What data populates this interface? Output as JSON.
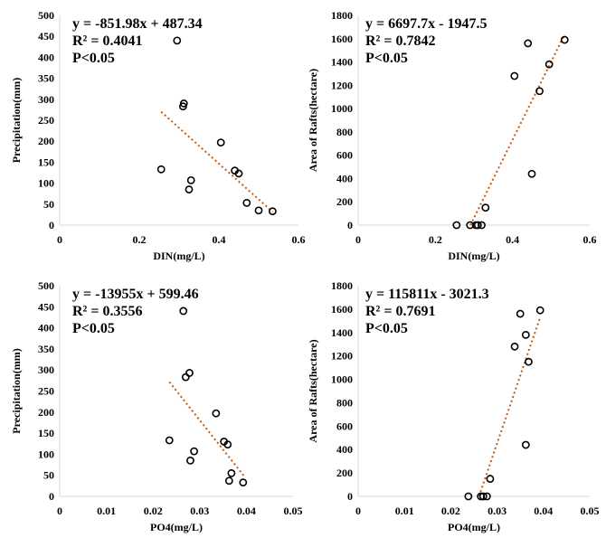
{
  "chart_data": [
    {
      "type": "scatter",
      "xlabel": "DIN(mg/L)",
      "ylabel": "Precipitation(mm)",
      "xlim": [
        0,
        0.6
      ],
      "ylim": [
        0,
        500
      ],
      "xticks": [
        "0",
        "0.2",
        "0.4",
        "0.6"
      ],
      "yticks": [
        "0",
        "50",
        "100",
        "150",
        "200",
        "250",
        "300",
        "350",
        "400",
        "450",
        "500"
      ],
      "x": [
        0.255,
        0.295,
        0.31,
        0.312,
        0.325,
        0.33,
        0.405,
        0.44,
        0.45,
        0.47,
        0.5,
        0.535
      ],
      "y": [
        133,
        440,
        283,
        290,
        85,
        107,
        197,
        130,
        123,
        53,
        35,
        33
      ],
      "trendline": {
        "slope": -851.98,
        "intercept": 487.34,
        "x_range": [
          0.255,
          0.535
        ]
      },
      "annotations": [
        "y = -851.98x + 487.34",
        "R² = 0.4041",
        "P<0.05"
      ],
      "grid": false
    },
    {
      "type": "scatter",
      "xlabel": "DIN(mg/L)",
      "ylabel": "Area of Rafts(hectare)",
      "xlim": [
        0,
        0.6
      ],
      "ylim": [
        0,
        1800
      ],
      "xticks": [
        "0",
        "0.2",
        "0.4",
        "0.6"
      ],
      "yticks": [
        "0",
        "200",
        "400",
        "600",
        "800",
        "1000",
        "1200",
        "1400",
        "1600",
        "1800"
      ],
      "x": [
        0.255,
        0.29,
        0.305,
        0.31,
        0.32,
        0.33,
        0.405,
        0.44,
        0.45,
        0.47,
        0.495,
        0.535
      ],
      "y": [
        0,
        0,
        0,
        0,
        0,
        150,
        1280,
        1560,
        440,
        1150,
        1380,
        1590
      ],
      "trendline": {
        "slope": 6697.7,
        "intercept": -1947.5,
        "x_range": [
          0.2908,
          0.535
        ]
      },
      "annotations": [
        "y = 6697.7x - 1947.5",
        "R² = 0.7842",
        "P<0.05"
      ],
      "grid": false
    },
    {
      "type": "scatter",
      "xlabel": "PO4(mg/L)",
      "ylabel": "Precipitation(mm)",
      "xlim": [
        0,
        0.05
      ],
      "ylim": [
        0,
        500
      ],
      "xticks": [
        "0",
        "0.01",
        "0.02",
        "0.03",
        "0.04",
        "0.05"
      ],
      "yticks": [
        "0",
        "50",
        "100",
        "150",
        "200",
        "250",
        "300",
        "350",
        "400",
        "450",
        "500"
      ],
      "x": [
        0.0235,
        0.0265,
        0.027,
        0.0278,
        0.028,
        0.0288,
        0.0335,
        0.0352,
        0.036,
        0.0363,
        0.0368,
        0.0393
      ],
      "y": [
        133,
        440,
        283,
        293,
        85,
        107,
        197,
        130,
        123,
        37,
        55,
        33
      ],
      "trendline": {
        "slope": -13955,
        "intercept": 599.46,
        "x_range": [
          0.0235,
          0.0397
        ]
      },
      "annotations": [
        "y = -13955x + 599.46",
        "R² = 0.3556",
        "P<0.05"
      ],
      "grid": false
    },
    {
      "type": "scatter",
      "xlabel": "PO4(mg/L)",
      "ylabel": "Area of Rafts(hectare)",
      "xlim": [
        0,
        0.05
      ],
      "ylim": [
        0,
        1800
      ],
      "xticks": [
        "0",
        "0.01",
        "0.02",
        "0.03",
        "0.04",
        "0.05"
      ],
      "yticks": [
        "0",
        "200",
        "400",
        "600",
        "800",
        "1000",
        "1200",
        "1400",
        "1600",
        "1800"
      ],
      "x": [
        0.0238,
        0.0265,
        0.027,
        0.0278,
        0.0285,
        0.0338,
        0.035,
        0.0362,
        0.0362,
        0.0368,
        0.0393
      ],
      "y": [
        0,
        0,
        0,
        0,
        150,
        1280,
        1560,
        1380,
        440,
        1150,
        1590
      ],
      "trendline": {
        "slope": 115811,
        "intercept": -3021.3,
        "x_range": [
          0.0261,
          0.0393
        ]
      },
      "annotations": [
        "y = 115811x - 3021.3",
        "R² = 0.7691",
        "P<0.05"
      ],
      "grid": false
    }
  ],
  "colors": {
    "marker": "#000000",
    "trendline": "#c55a11",
    "axis": "#d9d9d9"
  }
}
